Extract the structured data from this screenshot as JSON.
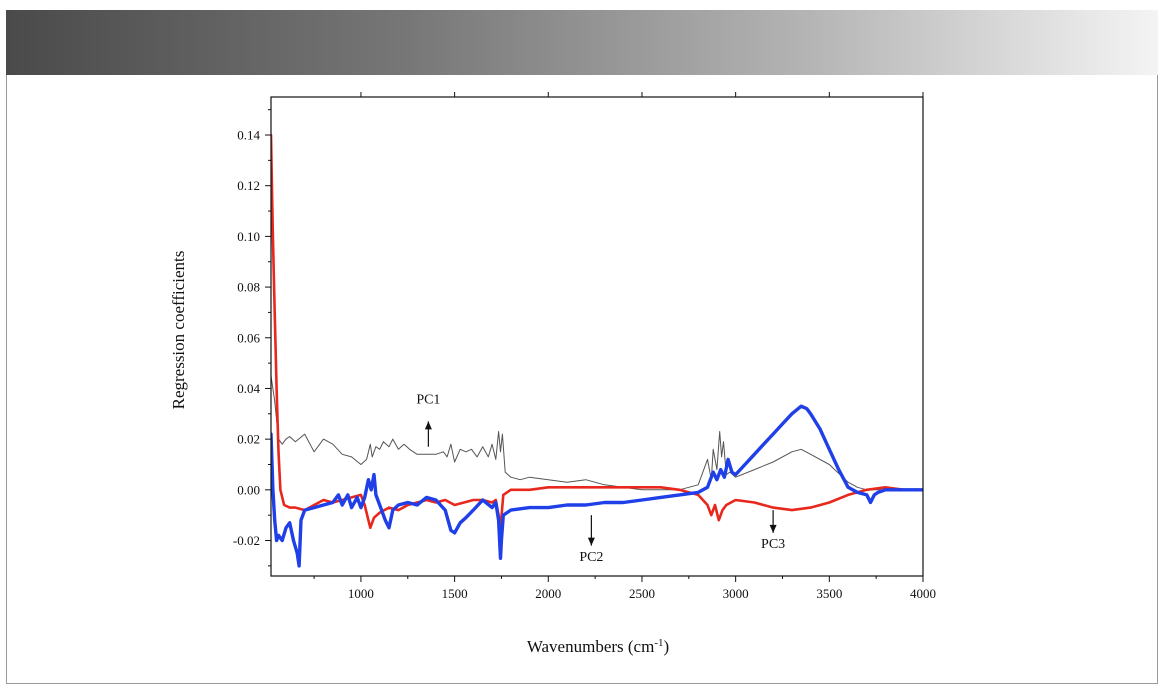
{
  "chart_data": {
    "type": "line",
    "title": "",
    "xlabel": "Wavenumbers (cm",
    "xlabel_sup": "-1",
    "xlabel_suffix": ")",
    "ylabel": "Regression coefficients",
    "xlim": [
      520,
      4000
    ],
    "ylim": [
      -0.034,
      0.155
    ],
    "x_ticks": [
      1000,
      1500,
      2000,
      2500,
      3000,
      3500,
      4000
    ],
    "x_tick_labels": [
      "1000",
      "1500",
      "2000",
      "2500",
      "3000",
      "3500",
      "4000"
    ],
    "y_ticks": [
      -0.02,
      0.0,
      0.02,
      0.04,
      0.06,
      0.08,
      0.1,
      0.12,
      0.14
    ],
    "y_tick_labels": [
      "-0.02",
      "0.00",
      "0.02",
      "0.04",
      "0.06",
      "0.08",
      "0.10",
      "0.12",
      "0.14"
    ],
    "grid": false,
    "series": [
      {
        "name": "PC1",
        "color": "#555555",
        "x": [
          520,
          540,
          560,
          580,
          600,
          620,
          650,
          700,
          750,
          800,
          850,
          900,
          950,
          1000,
          1030,
          1050,
          1060,
          1080,
          1100,
          1120,
          1150,
          1170,
          1200,
          1230,
          1260,
          1300,
          1350,
          1400,
          1440,
          1460,
          1480,
          1500,
          1530,
          1560,
          1590,
          1620,
          1650,
          1680,
          1700,
          1720,
          1735,
          1745,
          1755,
          1770,
          1800,
          1850,
          1900,
          2000,
          2100,
          2200,
          2300,
          2400,
          2500,
          2600,
          2700,
          2800,
          2850,
          2870,
          2880,
          2900,
          2915,
          2925,
          2935,
          2950,
          2970,
          3000,
          3100,
          3200,
          3300,
          3350,
          3400,
          3500,
          3600,
          3650,
          3700,
          3750,
          3800,
          3900,
          4000
        ],
        "y": [
          0.045,
          0.035,
          0.02,
          0.018,
          0.02,
          0.021,
          0.019,
          0.022,
          0.015,
          0.02,
          0.018,
          0.014,
          0.013,
          0.01,
          0.012,
          0.018,
          0.013,
          0.017,
          0.016,
          0.019,
          0.017,
          0.02,
          0.016,
          0.018,
          0.016,
          0.014,
          0.014,
          0.014,
          0.015,
          0.013,
          0.018,
          0.011,
          0.016,
          0.015,
          0.016,
          0.013,
          0.017,
          0.013,
          0.018,
          0.012,
          0.023,
          0.015,
          0.022,
          0.007,
          0.005,
          0.004,
          0.005,
          0.004,
          0.003,
          0.004,
          0.002,
          0.001,
          0.0,
          0.0,
          0.0,
          0.002,
          0.012,
          0.004,
          0.016,
          0.008,
          0.023,
          0.013,
          0.019,
          0.006,
          0.007,
          0.005,
          0.008,
          0.011,
          0.015,
          0.016,
          0.014,
          0.01,
          0.003,
          0.001,
          0.0,
          0.0,
          0.0,
          0.0,
          0.0
        ]
      },
      {
        "name": "PC2",
        "color": "#1f3fe8",
        "x": [
          520,
          530,
          540,
          550,
          560,
          580,
          600,
          620,
          640,
          660,
          670,
          680,
          700,
          750,
          800,
          850,
          880,
          900,
          930,
          950,
          980,
          1000,
          1020,
          1040,
          1055,
          1070,
          1080,
          1100,
          1130,
          1150,
          1170,
          1200,
          1250,
          1300,
          1350,
          1400,
          1450,
          1480,
          1500,
          1530,
          1560,
          1600,
          1650,
          1700,
          1720,
          1735,
          1745,
          1750,
          1760,
          1780,
          1800,
          1900,
          2000,
          2100,
          2200,
          2300,
          2400,
          2500,
          2600,
          2700,
          2800,
          2850,
          2870,
          2880,
          2900,
          2920,
          2940,
          2960,
          2980,
          3000,
          3050,
          3100,
          3150,
          3200,
          3250,
          3300,
          3350,
          3380,
          3400,
          3450,
          3500,
          3550,
          3600,
          3650,
          3700,
          3720,
          3740,
          3760,
          3800,
          3900,
          4000
        ],
        "y": [
          0.022,
          0.0,
          -0.012,
          -0.02,
          -0.018,
          -0.02,
          -0.015,
          -0.013,
          -0.02,
          -0.025,
          -0.03,
          -0.012,
          -0.008,
          -0.007,
          -0.006,
          -0.005,
          -0.002,
          -0.006,
          -0.002,
          -0.007,
          -0.003,
          -0.007,
          -0.003,
          0.004,
          0.0,
          0.006,
          -0.002,
          -0.006,
          -0.012,
          -0.015,
          -0.008,
          -0.006,
          -0.005,
          -0.006,
          -0.003,
          -0.004,
          -0.008,
          -0.016,
          -0.017,
          -0.013,
          -0.011,
          -0.008,
          -0.004,
          -0.007,
          -0.005,
          -0.012,
          -0.027,
          -0.02,
          -0.01,
          -0.009,
          -0.008,
          -0.007,
          -0.007,
          -0.006,
          -0.006,
          -0.005,
          -0.005,
          -0.004,
          -0.003,
          -0.002,
          -0.001,
          0.001,
          0.005,
          0.007,
          0.004,
          0.008,
          0.005,
          0.012,
          0.007,
          0.006,
          0.01,
          0.014,
          0.018,
          0.022,
          0.026,
          0.03,
          0.033,
          0.032,
          0.03,
          0.024,
          0.016,
          0.008,
          0.001,
          -0.001,
          -0.002,
          -0.005,
          -0.002,
          -0.001,
          0.0,
          0.0,
          0.0
        ]
      },
      {
        "name": "PC3",
        "color": "#e8271d",
        "x": [
          520,
          525,
          530,
          540,
          550,
          560,
          570,
          590,
          620,
          650,
          700,
          750,
          800,
          850,
          900,
          950,
          1000,
          1020,
          1040,
          1050,
          1070,
          1100,
          1150,
          1200,
          1250,
          1300,
          1350,
          1400,
          1450,
          1500,
          1550,
          1600,
          1650,
          1700,
          1720,
          1735,
          1745,
          1760,
          1800,
          1900,
          2000,
          2100,
          2200,
          2300,
          2400,
          2500,
          2600,
          2700,
          2800,
          2850,
          2870,
          2890,
          2910,
          2930,
          2950,
          3000,
          3100,
          3200,
          3300,
          3400,
          3500,
          3600,
          3700,
          3800,
          3900,
          4000
        ],
        "y": [
          0.14,
          0.12,
          0.1,
          0.07,
          0.04,
          0.015,
          0.0,
          -0.006,
          -0.007,
          -0.007,
          -0.008,
          -0.006,
          -0.004,
          -0.005,
          -0.004,
          -0.003,
          -0.002,
          -0.006,
          -0.012,
          -0.015,
          -0.011,
          -0.009,
          -0.007,
          -0.008,
          -0.006,
          -0.005,
          -0.004,
          -0.005,
          -0.004,
          -0.006,
          -0.005,
          -0.004,
          -0.004,
          -0.005,
          -0.004,
          -0.01,
          -0.015,
          -0.002,
          0.0,
          0.0,
          0.001,
          0.001,
          0.001,
          0.001,
          0.001,
          0.001,
          0.001,
          0.0,
          -0.002,
          -0.006,
          -0.01,
          -0.006,
          -0.012,
          -0.008,
          -0.006,
          -0.004,
          -0.005,
          -0.007,
          -0.008,
          -0.007,
          -0.005,
          -0.002,
          0.0,
          0.001,
          0.0,
          0.0
        ]
      }
    ],
    "annotations": [
      {
        "text": "PC1",
        "x": 1360,
        "y": 0.034,
        "arrow": "up",
        "arrow_from": 0.027,
        "arrow_to": 0.017
      },
      {
        "text": "PC2",
        "x": 2230,
        "y": -0.028,
        "arrow": "down",
        "arrow_from": -0.01,
        "arrow_to": -0.022
      },
      {
        "text": "PC3",
        "x": 3200,
        "y": -0.023,
        "arrow": "down",
        "arrow_from": -0.008,
        "arrow_to": -0.017
      }
    ]
  }
}
